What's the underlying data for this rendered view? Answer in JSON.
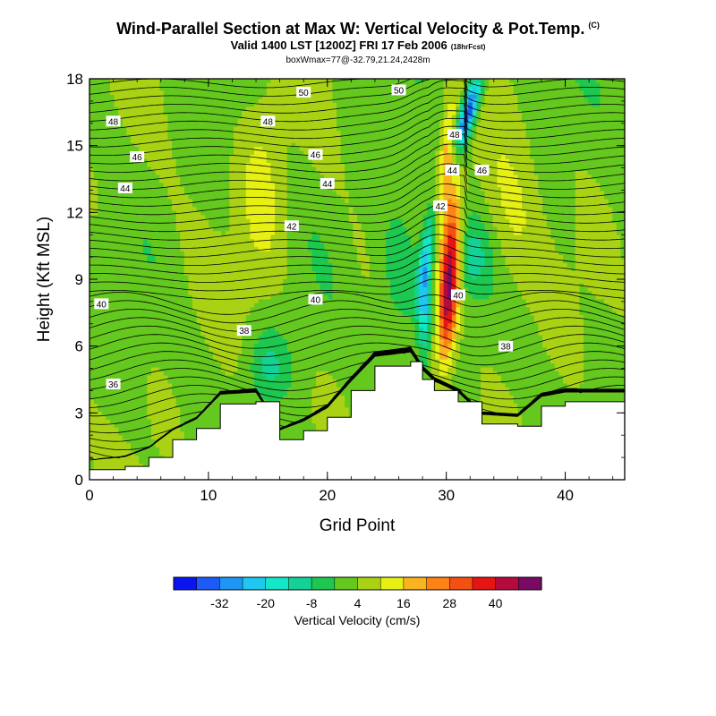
{
  "title": "Wind-Parallel Section at Max W: Vertical Velocity & Pot.Temp.",
  "title_units": "(C)",
  "subtitle": "Valid 1400 LST [1200Z] FRI 17 Feb 2006",
  "subtitle_note": "(18hrFcst)",
  "subtitle2": "boxWmax=77@-32.79,21.24,2428m",
  "chart_data": {
    "type": "heatmap",
    "title": "Wind-Parallel Section at Max W: Vertical Velocity & Pot.Temp.",
    "xlabel": "Grid Point",
    "ylabel": "Height (Kft MSL)",
    "xlim": [
      0,
      45
    ],
    "ylim": [
      0,
      18
    ],
    "x_ticks": [
      0,
      10,
      20,
      30,
      40
    ],
    "y_ticks": [
      0,
      3,
      6,
      9,
      12,
      15,
      18
    ],
    "colorbar": {
      "label": "Vertical Velocity (cm/s)",
      "tick_labels": [
        "-32",
        "-20",
        "-8",
        "4",
        "16",
        "28",
        "40"
      ],
      "tick_values": [
        -32,
        -20,
        -8,
        4,
        16,
        28,
        40
      ],
      "bins": [
        -38,
        -32,
        -26,
        -20,
        -14,
        -8,
        -2,
        4,
        10,
        16,
        22,
        28,
        34,
        40,
        46
      ],
      "colors": [
        "#0a14f0",
        "#1e5af5",
        "#1e96f5",
        "#1ec8f0",
        "#14e6c8",
        "#14d296",
        "#1ec850",
        "#64c81e",
        "#aad214",
        "#e6f014",
        "#fab41e",
        "#ff8214",
        "#f55014",
        "#e61414",
        "#b40a3c",
        "#780a64"
      ]
    },
    "terrain_top_kft": [
      [
        0,
        0.45
      ],
      [
        3,
        0.6
      ],
      [
        5,
        1.0
      ],
      [
        7,
        1.8
      ],
      [
        9,
        2.3
      ],
      [
        11,
        3.4
      ],
      [
        14,
        3.5
      ],
      [
        16,
        1.8
      ],
      [
        18,
        2.2
      ],
      [
        20,
        2.8
      ],
      [
        22,
        4.0
      ],
      [
        24,
        5.1
      ],
      [
        27,
        5.3
      ],
      [
        28,
        4.5
      ],
      [
        29,
        4.0
      ],
      [
        31,
        3.5
      ],
      [
        33,
        2.5
      ],
      [
        36,
        2.4
      ],
      [
        38,
        3.3
      ],
      [
        40,
        3.5
      ],
      [
        45,
        3.5
      ]
    ],
    "theta_contour_labels": [
      {
        "value": "50",
        "x": 18.0,
        "y": 17.4
      },
      {
        "value": "50",
        "x": 26.0,
        "y": 17.5
      },
      {
        "value": "48",
        "x": 2.0,
        "y": 16.1
      },
      {
        "value": "48",
        "x": 15.0,
        "y": 16.1
      },
      {
        "value": "48",
        "x": 30.7,
        "y": 15.5
      },
      {
        "value": "46",
        "x": 4.0,
        "y": 14.5
      },
      {
        "value": "46",
        "x": 19.0,
        "y": 14.6
      },
      {
        "value": "46",
        "x": 33.0,
        "y": 13.9
      },
      {
        "value": "44",
        "x": 3.0,
        "y": 13.1
      },
      {
        "value": "44",
        "x": 20.0,
        "y": 13.3
      },
      {
        "value": "44",
        "x": 30.5,
        "y": 13.9
      },
      {
        "value": "42",
        "x": 17.0,
        "y": 11.4
      },
      {
        "value": "42",
        "x": 29.5,
        "y": 12.3
      },
      {
        "value": "40",
        "x": 1.0,
        "y": 7.9
      },
      {
        "value": "40",
        "x": 19.0,
        "y": 8.1
      },
      {
        "value": "40",
        "x": 31.0,
        "y": 8.3
      },
      {
        "value": "38",
        "x": 13.0,
        "y": 6.7
      },
      {
        "value": "38",
        "x": 35.0,
        "y": 6.0
      },
      {
        "value": "36",
        "x": 2.0,
        "y": 4.3
      }
    ]
  }
}
